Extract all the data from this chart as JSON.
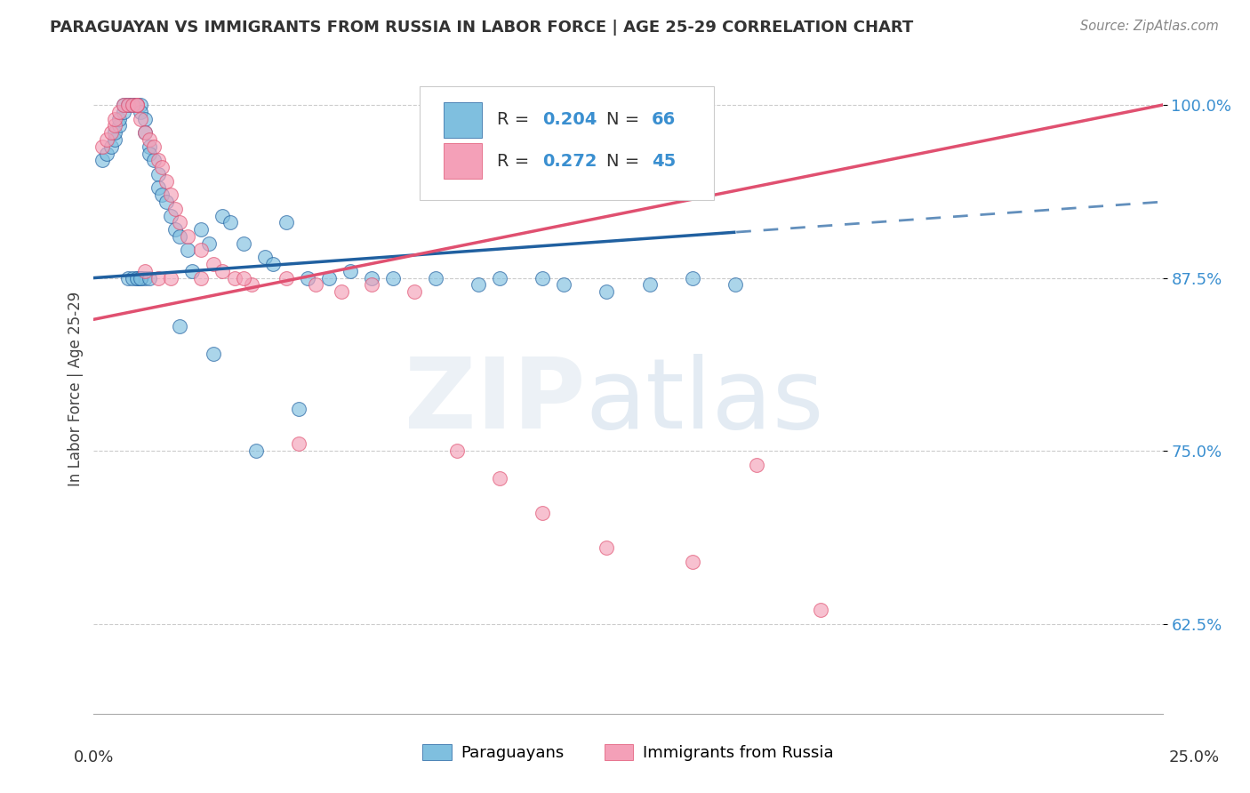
{
  "title": "PARAGUAYAN VS IMMIGRANTS FROM RUSSIA IN LABOR FORCE | AGE 25-29 CORRELATION CHART",
  "source": "Source: ZipAtlas.com",
  "ylabel": "In Labor Force | Age 25-29",
  "yticks": [
    62.5,
    75.0,
    87.5,
    100.0
  ],
  "ytick_labels": [
    "62.5%",
    "75.0%",
    "87.5%",
    "100.0%"
  ],
  "xmin": 0.0,
  "xmax": 25.0,
  "ymin": 56.0,
  "ymax": 103.0,
  "label1": "Paraguayans",
  "label2": "Immigrants from Russia",
  "color1": "#7fbfdf",
  "color2": "#f4a0b8",
  "trend_color1": "#2060a0",
  "trend_color2": "#e05070",
  "blue_intercept": 87.5,
  "blue_slope": 0.22,
  "blue_dash_start": 15.0,
  "pink_intercept": 84.5,
  "pink_slope": 0.62,
  "blue_x": [
    0.2,
    0.3,
    0.4,
    0.5,
    0.5,
    0.6,
    0.6,
    0.7,
    0.7,
    0.8,
    0.8,
    0.9,
    0.9,
    1.0,
    1.0,
    1.0,
    1.1,
    1.1,
    1.2,
    1.2,
    1.3,
    1.3,
    1.4,
    1.5,
    1.5,
    1.6,
    1.7,
    1.8,
    1.9,
    2.0,
    2.2,
    2.3,
    2.5,
    2.7,
    3.0,
    3.2,
    3.5,
    4.0,
    4.2,
    4.5,
    5.0,
    5.5,
    6.0,
    6.5,
    7.0,
    8.0,
    9.0,
    9.5,
    10.5,
    11.0,
    12.0,
    13.0,
    14.0,
    15.0,
    1.0,
    1.1,
    1.2,
    0.8,
    0.9,
    1.0,
    1.1,
    1.3,
    2.0,
    2.8,
    4.8,
    3.8
  ],
  "blue_y": [
    96.0,
    96.5,
    97.0,
    97.5,
    98.0,
    98.5,
    99.0,
    99.5,
    100.0,
    100.0,
    100.0,
    100.0,
    100.0,
    100.0,
    100.0,
    100.0,
    100.0,
    99.5,
    99.0,
    98.0,
    97.0,
    96.5,
    96.0,
    95.0,
    94.0,
    93.5,
    93.0,
    92.0,
    91.0,
    90.5,
    89.5,
    88.0,
    91.0,
    90.0,
    92.0,
    91.5,
    90.0,
    89.0,
    88.5,
    91.5,
    87.5,
    87.5,
    88.0,
    87.5,
    87.5,
    87.5,
    87.0,
    87.5,
    87.5,
    87.0,
    86.5,
    87.0,
    87.5,
    87.0,
    87.5,
    87.5,
    87.5,
    87.5,
    87.5,
    87.5,
    87.5,
    87.5,
    84.0,
    82.0,
    78.0,
    75.0
  ],
  "pink_x": [
    0.2,
    0.3,
    0.4,
    0.5,
    0.5,
    0.6,
    0.7,
    0.8,
    0.9,
    1.0,
    1.0,
    1.1,
    1.2,
    1.3,
    1.4,
    1.5,
    1.6,
    1.7,
    1.8,
    1.9,
    2.0,
    2.2,
    2.5,
    2.8,
    3.0,
    3.3,
    3.7,
    4.5,
    5.2,
    5.8,
    6.5,
    7.5,
    8.5,
    9.5,
    10.5,
    12.0,
    14.0,
    15.5,
    17.0,
    1.2,
    1.5,
    1.8,
    2.5,
    3.5,
    4.8
  ],
  "pink_y": [
    97.0,
    97.5,
    98.0,
    98.5,
    99.0,
    99.5,
    100.0,
    100.0,
    100.0,
    100.0,
    100.0,
    99.0,
    98.0,
    97.5,
    97.0,
    96.0,
    95.5,
    94.5,
    93.5,
    92.5,
    91.5,
    90.5,
    89.5,
    88.5,
    88.0,
    87.5,
    87.0,
    87.5,
    87.0,
    86.5,
    87.0,
    86.5,
    75.0,
    73.0,
    70.5,
    68.0,
    67.0,
    74.0,
    63.5,
    88.0,
    87.5,
    87.5,
    87.5,
    87.5,
    75.5
  ]
}
